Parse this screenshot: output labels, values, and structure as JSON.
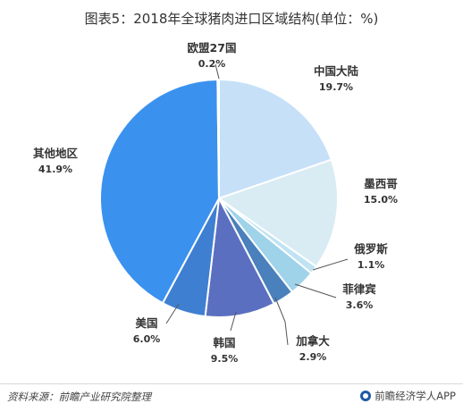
{
  "title": "图表5：2018年全球猪肉进口区域结构(单位：%)",
  "chart_data": {
    "type": "pie",
    "title": "图表5：2018年全球猪肉进口区域结构(单位：%)",
    "unit": "%",
    "slices": [
      {
        "name": "中国大陆",
        "value": 19.7,
        "value_label": "19.7%",
        "color": "#c6e0f8"
      },
      {
        "name": "墨西哥",
        "value": 15.0,
        "value_label": "15.0%",
        "color": "#d9ebf3"
      },
      {
        "name": "俄罗斯",
        "value": 1.1,
        "value_label": "1.1%",
        "color": "#bfe3f3"
      },
      {
        "name": "菲律宾",
        "value": 3.6,
        "value_label": "3.6%",
        "color": "#9fd3ea"
      },
      {
        "name": "加拿大",
        "value": 2.9,
        "value_label": "2.9%",
        "color": "#4a80bb"
      },
      {
        "name": "韩国",
        "value": 9.5,
        "value_label": "9.5%",
        "color": "#5b6fc0"
      },
      {
        "name": "美国",
        "value": 6.0,
        "value_label": "6.0%",
        "color": "#3f7fd1"
      },
      {
        "name": "其他地区",
        "value": 41.9,
        "value_label": "41.9%",
        "color": "#3b91ee"
      },
      {
        "name": "欧盟27国",
        "value": 0.2,
        "value_label": "0.2%",
        "color": "#7fb4ea"
      }
    ]
  },
  "footer": {
    "source": "资料来源：前瞻产业研究院整理",
    "brand": "前瞻经济学人APP"
  }
}
